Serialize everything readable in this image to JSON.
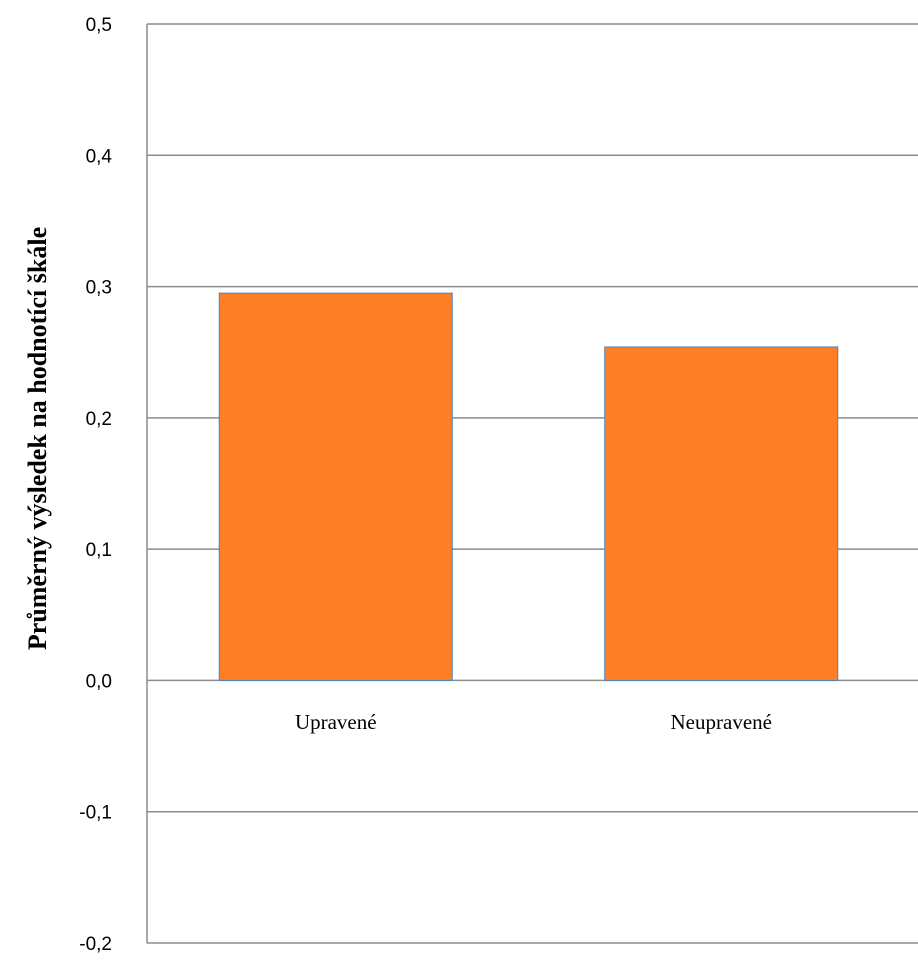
{
  "chart_data": {
    "type": "bar",
    "title": "",
    "xlabel": "",
    "ylabel": "Průměrný výsledek na hodnotící škále",
    "categories": [
      "Upravené",
      "Neupravené"
    ],
    "values": [
      0.295,
      0.254
    ],
    "ylim": [
      -0.2,
      0.5
    ],
    "yticks": [
      "0,5",
      "0,4",
      "0,3",
      "0,2",
      "0,1",
      "0,0",
      "-0,1",
      "-0,2"
    ],
    "grid": true,
    "legend": "none",
    "bar_color": "#FF7F27",
    "bar_edge_color": "#4F81BD",
    "grid_color": "#8C8C8C"
  }
}
